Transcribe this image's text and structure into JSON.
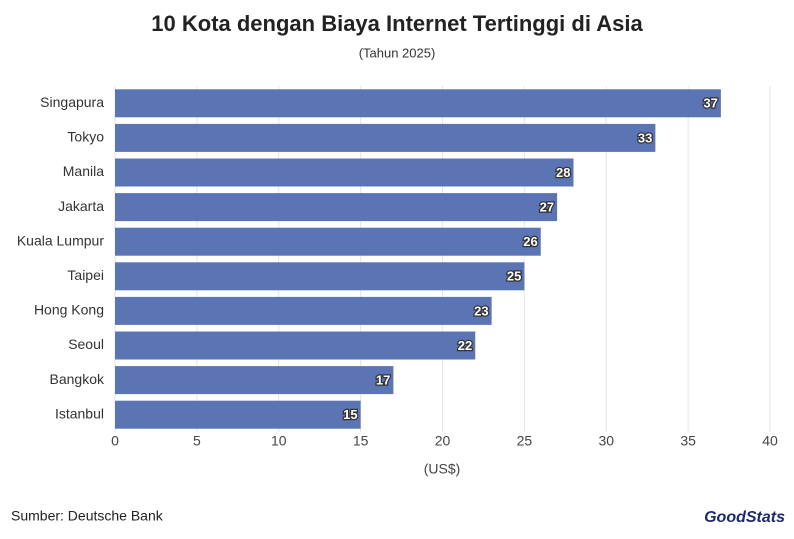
{
  "chart_data": {
    "type": "barh",
    "title": "10 Kota dengan Biaya Internet Tertinggi di Asia",
    "subtitle": "(Tahun 2025)",
    "x_label": "(US$)",
    "categories": [
      "Singapura",
      "Tokyo",
      "Manila",
      "Jakarta",
      "Kuala Lumpur",
      "Taipei",
      "Hong Kong",
      "Seoul",
      "Bangkok",
      "Istanbul"
    ],
    "values": [
      37,
      33,
      28,
      27,
      26,
      25,
      23,
      22,
      17,
      15
    ],
    "color": "#5b74b4",
    "xlim": [
      0,
      40
    ],
    "xticks": [
      0,
      5,
      10,
      15,
      20,
      25,
      30,
      35,
      40
    ],
    "grid": true
  },
  "source": "Sumber: Deutsche Bank",
  "brand": "GoodStats"
}
